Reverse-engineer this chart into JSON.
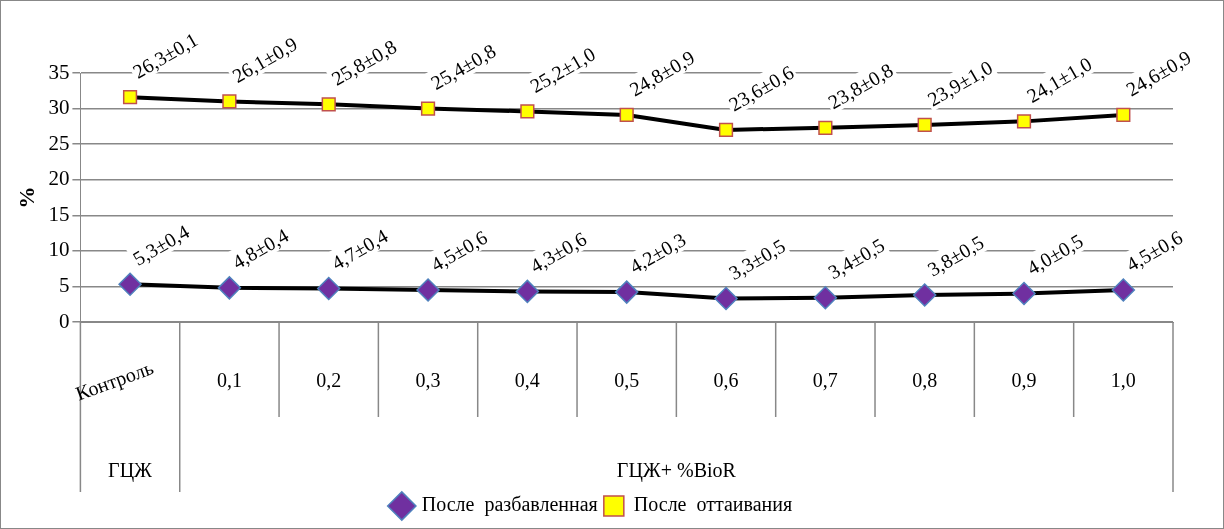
{
  "chart_data": {
    "type": "line",
    "ylabel": "%",
    "categories": [
      "Контроль",
      "0,1",
      "0,2",
      "0,3",
      "0,4",
      "0,5",
      "0,6",
      "0,7",
      "0,8",
      "0,9",
      "1,0"
    ],
    "series": [
      {
        "name": "После  разбавленная",
        "color": "#7030a0",
        "marker": "diamond",
        "values": [
          5.3,
          4.8,
          4.7,
          4.5,
          4.3,
          4.2,
          3.3,
          3.4,
          3.8,
          4.0,
          4.5
        ],
        "value_labels": [
          "5,3±0,4",
          "4,8±0,4",
          "4,7±0,4",
          "4,5±0,6",
          "4,3±0,6",
          "4,2±0,3",
          "3,3±0,5",
          "3,4±0,5",
          "3,8±0,5",
          "4,0±0,5",
          "4,5±0,6"
        ]
      },
      {
        "name": "После  оттаивания",
        "color": "#ffff00",
        "marker": "square",
        "values": [
          31.6,
          31.0,
          30.6,
          30.0,
          29.6,
          29.1,
          27.0,
          27.3,
          27.7,
          28.2,
          29.1
        ]
      }
    ],
    "ylim": [
      0,
      35
    ],
    "yticks": [
      0,
      5,
      10,
      15,
      20,
      25,
      30,
      35
    ],
    "grid": "y",
    "legend": "bottom",
    "line_style": "solid",
    "annotations": [
      "ГЦЖ",
      "ГЦЖ+ %BioR",
      {
        "text": "26,3±0,1",
        "x": "Контроль",
        "y": 31.6
      },
      {
        "text": "26,1±0,9",
        "x": "0,1",
        "y": 31.0
      },
      {
        "text": "25,8±0,8",
        "x": "0,2",
        "y": 30.6
      },
      {
        "text": "25,4±0,8",
        "x": "0,3",
        "y": 30.0
      },
      {
        "text": "25,2±1,0",
        "x": "0,4",
        "y": 29.6
      },
      {
        "text": "24,8±0,9",
        "x": "0,5",
        "y": 29.1
      },
      {
        "text": "23,6±0,6",
        "x": "0,6",
        "y": 27.0
      },
      {
        "text": "23,8±0,8",
        "x": "0,7",
        "y": 27.3
      },
      {
        "text": "23,9±1,0",
        "x": "0,8",
        "y": 27.7
      },
      {
        "text": "24,1±1,0",
        "x": "0,9",
        "y": 28.2
      },
      {
        "text": "24,6±0,9",
        "x": "1,0",
        "y": 29.1
      }
    ]
  }
}
